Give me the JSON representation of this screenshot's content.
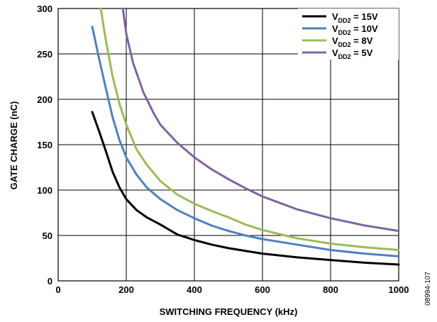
{
  "chart_data": {
    "type": "line",
    "title": "",
    "xlabel": "SWITCHING FREQUENCY (kHz)",
    "ylabel": "GATE CHARGE (nC)",
    "xlim": [
      0,
      1000
    ],
    "ylim": [
      0,
      300
    ],
    "xticks": [
      "0",
      "200",
      "400",
      "600",
      "800",
      "1000"
    ],
    "yticks": [
      "0",
      "50",
      "100",
      "150",
      "200",
      "250",
      "300"
    ],
    "grid": true,
    "legend_position": "top-right",
    "figure_id": "08994-107",
    "series": [
      {
        "name": "VDD2 = 15V",
        "legend": {
          "main": "V",
          "sub": "DD2",
          "rest": " = 15V"
        },
        "color": "#000000",
        "x": [
          100,
          120,
          140,
          160,
          180,
          200,
          230,
          260,
          300,
          350,
          400,
          450,
          500,
          600,
          700,
          800,
          900,
          1000
        ],
        "y": [
          186,
          165,
          143,
          120,
          103,
          90,
          78,
          70,
          62,
          51,
          45,
          40,
          36,
          30,
          26,
          23,
          20,
          18
        ]
      },
      {
        "name": "VDD2 = 10V",
        "legend": {
          "main": "V",
          "sub": "DD2",
          "rest": " = 10V"
        },
        "color": "#4f81bd",
        "x": [
          100,
          120,
          140,
          160,
          180,
          200,
          230,
          260,
          300,
          350,
          400,
          450,
          500,
          550,
          600,
          700,
          800,
          900,
          1000
        ],
        "y": [
          280,
          245,
          212,
          180,
          155,
          136,
          117,
          103,
          90,
          78,
          69,
          61,
          55,
          50,
          46,
          40,
          34,
          30,
          27
        ]
      },
      {
        "name": "VDD2 = 8V",
        "legend": {
          "main": "V",
          "sub": "DD2",
          "rest": " = 8V"
        },
        "color": "#9bbb59",
        "x": [
          125,
          140,
          160,
          180,
          200,
          230,
          260,
          300,
          350,
          400,
          450,
          500,
          550,
          600,
          700,
          800,
          900,
          1000
        ],
        "y": [
          300,
          265,
          225,
          195,
          172,
          145,
          128,
          110,
          95,
          85,
          77,
          70,
          62,
          56,
          47,
          41,
          37,
          34
        ]
      },
      {
        "name": "VDD2 = 5V",
        "legend": {
          "main": "V",
          "sub": "DD2",
          "rest": " = 5V"
        },
        "color": "#8064a2",
        "x": [
          190,
          200,
          220,
          250,
          280,
          300,
          350,
          400,
          450,
          500,
          550,
          600,
          700,
          800,
          900,
          1000
        ],
        "y": [
          300,
          272,
          240,
          208,
          185,
          172,
          152,
          136,
          123,
          112,
          102,
          93,
          79,
          69,
          61,
          55
        ]
      }
    ]
  }
}
